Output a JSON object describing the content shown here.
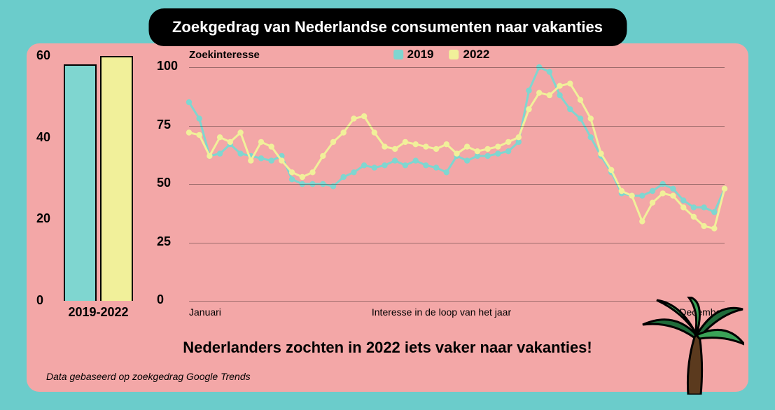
{
  "colors": {
    "page_bg": "#6bcccb",
    "panel_bg": "#f3a7a7",
    "title_bg": "#000000",
    "title_fg": "#ffffff",
    "text": "#000000",
    "series_2019": "#7fd6d0",
    "series_2022": "#f1f09a",
    "grid": "rgba(0,0,0,0.35)",
    "bar_border": "#000000",
    "palm_trunk": "#5b3a1e",
    "palm_leaf_dark": "#1f6b3a",
    "palm_leaf_light": "#3aa257"
  },
  "title": {
    "text": "Zoekgedrag van Nederlandse consumenten naar vakanties",
    "fontsize": 22
  },
  "bar_chart": {
    "type": "bar",
    "ylim": [
      0,
      60
    ],
    "yticks": [
      0,
      20,
      40,
      60
    ],
    "tick_fontsize": 18,
    "categories": [
      "2019",
      "2022"
    ],
    "values": [
      58,
      60
    ],
    "bar_colors": [
      "#7fd6d0",
      "#f1f09a"
    ],
    "bar_width": 0.9,
    "xlabel": "2019-2022",
    "xlabel_fontsize": 18
  },
  "line_chart": {
    "type": "line",
    "subtitle": "Zoekinteresse",
    "subtitle_fontsize": 15,
    "ylim": [
      0,
      100
    ],
    "yticks": [
      0,
      25,
      50,
      75,
      100
    ],
    "ytick_fontsize": 18,
    "x_start_label": "Januari",
    "x_caption": "Interesse in de loop van het jaar",
    "x_end_label": "December",
    "xlabel_fontsize": 14,
    "legend": [
      {
        "label": "2019",
        "color": "#7fd6d0"
      },
      {
        "label": "2022",
        "color": "#f1f09a"
      }
    ],
    "legend_fontsize": 17,
    "marker_radius": 4.2,
    "line_width": 3,
    "series": {
      "2019": [
        85,
        78,
        62,
        63,
        67,
        63,
        62,
        61,
        60,
        62,
        52,
        50,
        50,
        50,
        49,
        53,
        55,
        58,
        57,
        58,
        60,
        58,
        60,
        58,
        57,
        55,
        62,
        60,
        62,
        62,
        63,
        64,
        68,
        90,
        100,
        98,
        88,
        82,
        78,
        70,
        62,
        55,
        46,
        45,
        45,
        47,
        50,
        48,
        43,
        40,
        40,
        38,
        48
      ],
      "2022": [
        72,
        71,
        62,
        70,
        68,
        72,
        60,
        68,
        66,
        60,
        55,
        53,
        55,
        62,
        68,
        72,
        78,
        79,
        72,
        66,
        65,
        68,
        67,
        66,
        65,
        67,
        63,
        66,
        64,
        65,
        66,
        68,
        70,
        82,
        89,
        88,
        92,
        93,
        86,
        78,
        63,
        56,
        47,
        45,
        34,
        42,
        46,
        45,
        40,
        36,
        32,
        31,
        48
      ]
    }
  },
  "conclusion": {
    "text": "Nederlanders zochten in 2022 iets vaker naar vakanties!",
    "fontsize": 22
  },
  "source": {
    "text": "Data gebaseerd op zoekgedrag Google Trends",
    "fontsize": 14
  }
}
